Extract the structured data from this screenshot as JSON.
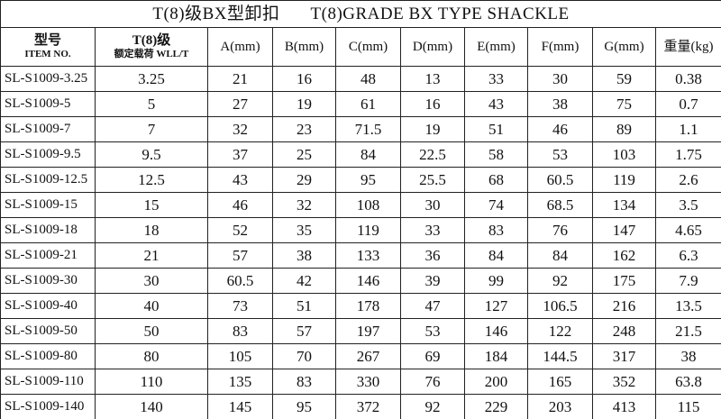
{
  "title": {
    "cn": "T(8)级BX型卸扣",
    "en": "T(8)GRADE BX TYPE SHACKLE"
  },
  "header": {
    "item": {
      "cn": "型号",
      "en": "ITEM NO."
    },
    "wll": {
      "cn": "T(8)级",
      "sub": "额定载荷 WLL/T"
    },
    "dims": [
      "A(mm)",
      "B(mm)",
      "C(mm)",
      "D(mm)",
      "E(mm)",
      "F(mm)",
      "G(mm)",
      "重量(kg)"
    ]
  },
  "table": {
    "rows": [
      [
        "SL-S1009-3.25",
        3.25,
        21,
        16,
        48,
        13,
        33,
        30,
        59,
        0.38
      ],
      [
        "SL-S1009-5",
        5,
        27,
        19,
        61,
        16,
        43,
        38,
        75,
        0.7
      ],
      [
        "SL-S1009-7",
        7,
        32,
        23,
        71.5,
        19,
        51,
        46,
        89,
        1.1
      ],
      [
        "SL-S1009-9.5",
        9.5,
        37,
        25,
        84,
        22.5,
        58,
        53,
        103,
        1.75
      ],
      [
        "SL-S1009-12.5",
        12.5,
        43,
        29,
        95,
        25.5,
        68,
        60.5,
        119,
        2.6
      ],
      [
        "SL-S1009-15",
        15,
        46,
        32,
        108,
        30,
        74,
        68.5,
        134,
        3.5
      ],
      [
        "SL-S1009-18",
        18,
        52,
        35,
        119,
        33,
        83,
        76,
        147,
        4.65
      ],
      [
        "SL-S1009-21",
        21,
        57,
        38,
        133,
        36,
        84,
        84,
        162,
        6.3
      ],
      [
        "SL-S1009-30",
        30,
        60.5,
        42,
        146,
        39,
        99,
        92,
        175,
        7.9
      ],
      [
        "SL-S1009-40",
        40,
        73,
        51,
        178,
        47,
        127,
        106.5,
        216,
        13.5
      ],
      [
        "SL-S1009-50",
        50,
        83,
        57,
        197,
        53,
        146,
        122,
        248,
        21.5
      ],
      [
        "SL-S1009-80",
        80,
        105,
        70,
        267,
        69,
        184,
        144.5,
        317,
        38
      ],
      [
        "SL-S1009-110",
        110,
        135,
        83,
        330,
        76,
        200,
        165,
        352,
        63.8
      ],
      [
        "SL-S1009-140",
        140,
        145,
        95,
        372,
        92,
        229,
        203,
        413,
        115
      ]
    ]
  }
}
